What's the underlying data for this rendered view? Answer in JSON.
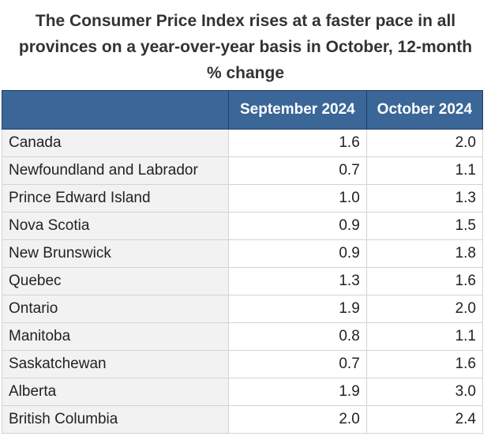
{
  "title": "The Consumer Price Index rises at a faster pace in all provinces on a year-over-year basis in October, 12-month % change",
  "table": {
    "columns": [
      "September 2024",
      "October 2024"
    ],
    "rows": [
      [
        "Canada",
        "1.6",
        "2.0"
      ],
      [
        "Newfoundland and Labrador",
        "0.7",
        "1.1"
      ],
      [
        "Prince Edward Island",
        "1.0",
        "1.3"
      ],
      [
        "Nova Scotia",
        "0.9",
        "1.5"
      ],
      [
        "New Brunswick",
        "0.9",
        "1.8"
      ],
      [
        "Quebec",
        "1.3",
        "1.6"
      ],
      [
        "Ontario",
        "1.9",
        "2.0"
      ],
      [
        "Manitoba",
        "0.8",
        "1.1"
      ],
      [
        "Saskatchewan",
        "0.7",
        "1.6"
      ],
      [
        "Alberta",
        "1.9",
        "3.0"
      ],
      [
        "British Columbia",
        "2.0",
        "2.4"
      ]
    ]
  }
}
